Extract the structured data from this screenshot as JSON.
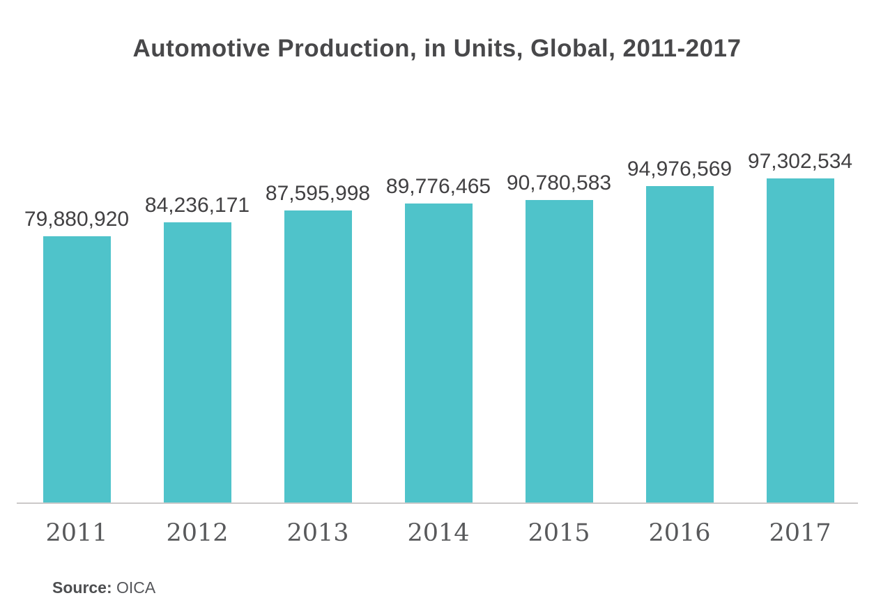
{
  "title": "Automotive Production, in Units, Global, 2011-2017",
  "source": {
    "label": "Source:",
    "value": "OICA"
  },
  "colors": {
    "bar": "#4FC3CA",
    "title_text": "#48484a",
    "value_label_text": "#414042",
    "tick_label_text": "#58595b",
    "axis_line": "#cbc9c9",
    "background": "#ffffff"
  },
  "chart_data": {
    "type": "bar",
    "title": "Automotive Production, in Units, Global, 2011-2017",
    "categories": [
      "2011",
      "2012",
      "2013",
      "2014",
      "2015",
      "2016",
      "2017"
    ],
    "values": [
      79880920,
      84236171,
      87595998,
      89776465,
      90780583,
      94976569,
      97302534
    ],
    "value_labels": [
      "79,880,920",
      "84,236,171",
      "87,595,998",
      "89,776,465",
      "90,780,583",
      "94,976,569",
      "97,302,534"
    ],
    "xlabel": "",
    "ylabel": "",
    "ylim": [
      0,
      100000000
    ],
    "grid": false,
    "legend": false,
    "y_axis_visible": false,
    "data_labels_position": "above-bars"
  }
}
